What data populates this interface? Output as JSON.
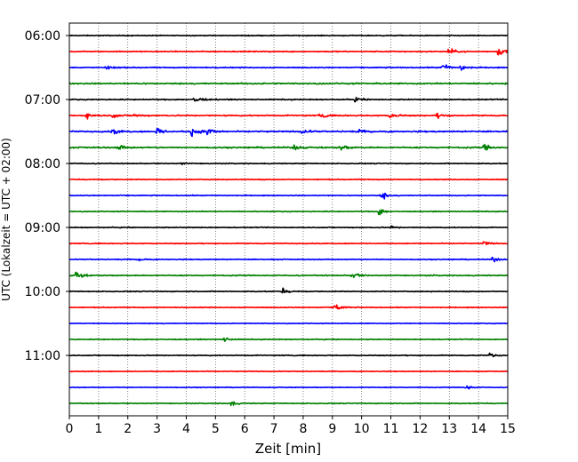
{
  "chart_data": {
    "type": "line",
    "xlabel": "Zeit  [min]",
    "ylabel": "UTC (Lokalzeit = UTC + 02:00)",
    "xlim": [
      0,
      15
    ],
    "x_ticks": [
      0,
      1,
      2,
      3,
      4,
      5,
      6,
      7,
      8,
      9,
      10,
      11,
      12,
      13,
      14,
      15
    ],
    "x_tick_labels": [
      "0",
      "1",
      "2",
      "3",
      "4",
      "5",
      "6",
      "7",
      "8",
      "9",
      "10",
      "11",
      "12",
      "13",
      "14",
      "15"
    ],
    "grid_x": true,
    "y_tick_labels": [
      "06:00",
      "07:00",
      "08:00",
      "09:00",
      "10:00",
      "11:00"
    ],
    "trace_minutes": 15,
    "start_time": "06:00",
    "colors": [
      "#000000",
      "#ff0000",
      "#0000ff",
      "#008000"
    ],
    "series": [
      {
        "start": "06:00",
        "color": "#000000",
        "amp": 0.05,
        "events": []
      },
      {
        "start": "06:15",
        "color": "#ff0000",
        "amp": 0.06,
        "events": [
          {
            "t": 13.0,
            "a": 0.35
          },
          {
            "t": 14.7,
            "a": 0.6
          }
        ]
      },
      {
        "start": "06:30",
        "color": "#0000ff",
        "amp": 0.06,
        "events": [
          {
            "t": 1.3,
            "a": 0.2
          },
          {
            "t": 12.8,
            "a": 0.5
          },
          {
            "t": 13.4,
            "a": 0.4
          }
        ]
      },
      {
        "start": "06:45",
        "color": "#008000",
        "amp": 0.08,
        "events": []
      },
      {
        "start": "07:00",
        "color": "#000000",
        "amp": 0.06,
        "events": [
          {
            "t": 4.3,
            "a": 0.45
          },
          {
            "t": 9.8,
            "a": 0.2
          }
        ]
      },
      {
        "start": "07:15",
        "color": "#ff0000",
        "amp": 0.07,
        "events": [
          {
            "t": 0.6,
            "a": 0.35
          },
          {
            "t": 1.5,
            "a": 0.25
          },
          {
            "t": 2.2,
            "a": 0.2
          },
          {
            "t": 8.6,
            "a": 0.25
          },
          {
            "t": 11.0,
            "a": 0.35
          },
          {
            "t": 12.6,
            "a": 0.25
          }
        ]
      },
      {
        "start": "07:30",
        "color": "#0000ff",
        "amp": 0.08,
        "events": [
          {
            "t": 1.5,
            "a": 0.3
          },
          {
            "t": 3.0,
            "a": 0.45
          },
          {
            "t": 4.2,
            "a": 0.6
          },
          {
            "t": 4.7,
            "a": 0.55
          },
          {
            "t": 8.0,
            "a": 0.3
          },
          {
            "t": 9.9,
            "a": 0.2
          }
        ]
      },
      {
        "start": "07:45",
        "color": "#008000",
        "amp": 0.08,
        "events": [
          {
            "t": 1.7,
            "a": 0.3
          },
          {
            "t": 7.7,
            "a": 0.25
          },
          {
            "t": 9.3,
            "a": 0.35
          },
          {
            "t": 14.2,
            "a": 0.4
          }
        ]
      },
      {
        "start": "08:00",
        "color": "#000000",
        "amp": 0.05,
        "events": [
          {
            "t": 3.8,
            "a": 0.15
          }
        ]
      },
      {
        "start": "08:15",
        "color": "#ff0000",
        "amp": 0.05,
        "events": []
      },
      {
        "start": "08:30",
        "color": "#0000ff",
        "amp": 0.05,
        "events": [
          {
            "t": 10.7,
            "a": 0.4
          }
        ]
      },
      {
        "start": "08:45",
        "color": "#008000",
        "amp": 0.05,
        "events": [
          {
            "t": 10.6,
            "a": 0.45
          }
        ]
      },
      {
        "start": "09:00",
        "color": "#000000",
        "amp": 0.05,
        "events": [
          {
            "t": 11.0,
            "a": 0.15
          }
        ]
      },
      {
        "start": "09:15",
        "color": "#ff0000",
        "amp": 0.05,
        "events": [
          {
            "t": 14.2,
            "a": 0.25
          }
        ]
      },
      {
        "start": "09:30",
        "color": "#0000ff",
        "amp": 0.05,
        "events": [
          {
            "t": 2.4,
            "a": 0.15
          },
          {
            "t": 14.5,
            "a": 0.25
          }
        ]
      },
      {
        "start": "09:45",
        "color": "#008000",
        "amp": 0.06,
        "events": [
          {
            "t": 0.25,
            "a": 0.5
          },
          {
            "t": 9.7,
            "a": 0.35
          }
        ]
      },
      {
        "start": "10:00",
        "color": "#000000",
        "amp": 0.05,
        "events": [
          {
            "t": 7.3,
            "a": 0.25
          }
        ]
      },
      {
        "start": "10:15",
        "color": "#ff0000",
        "amp": 0.05,
        "events": [
          {
            "t": 9.1,
            "a": 0.55
          }
        ]
      },
      {
        "start": "10:30",
        "color": "#0000ff",
        "amp": 0.04,
        "events": []
      },
      {
        "start": "10:45",
        "color": "#008000",
        "amp": 0.05,
        "events": [
          {
            "t": 5.3,
            "a": 0.25
          }
        ]
      },
      {
        "start": "11:00",
        "color": "#000000",
        "amp": 0.05,
        "events": [
          {
            "t": 14.4,
            "a": 0.25
          }
        ]
      },
      {
        "start": "11:15",
        "color": "#ff0000",
        "amp": 0.04,
        "events": []
      },
      {
        "start": "11:30",
        "color": "#0000ff",
        "amp": 0.04,
        "events": [
          {
            "t": 13.6,
            "a": 0.25
          }
        ]
      },
      {
        "start": "11:45",
        "color": "#008000",
        "amp": 0.05,
        "events": [
          {
            "t": 5.5,
            "a": 0.35
          }
        ]
      }
    ]
  }
}
